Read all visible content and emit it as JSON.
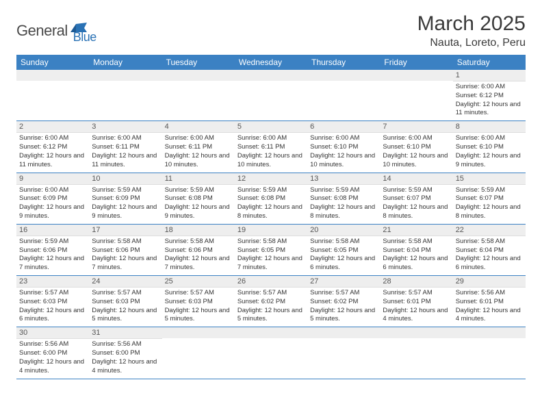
{
  "logo": {
    "part1": "General",
    "part2": "Blue"
  },
  "title": "March 2025",
  "location": "Nauta, Loreto, Peru",
  "colors": {
    "header_bg": "#3b81c3",
    "header_text": "#ffffff",
    "date_bg": "#eeeeee",
    "border": "#3b81c3",
    "logo_gray": "#4a4a4a",
    "logo_blue": "#2a72b5"
  },
  "day_names": [
    "Sunday",
    "Monday",
    "Tuesday",
    "Wednesday",
    "Thursday",
    "Friday",
    "Saturday"
  ],
  "weeks": [
    [
      null,
      null,
      null,
      null,
      null,
      null,
      {
        "n": "1",
        "sr": "6:00 AM",
        "ss": "6:12 PM",
        "dl": "12 hours and 11 minutes."
      }
    ],
    [
      {
        "n": "2",
        "sr": "6:00 AM",
        "ss": "6:12 PM",
        "dl": "12 hours and 11 minutes."
      },
      {
        "n": "3",
        "sr": "6:00 AM",
        "ss": "6:11 PM",
        "dl": "12 hours and 11 minutes."
      },
      {
        "n": "4",
        "sr": "6:00 AM",
        "ss": "6:11 PM",
        "dl": "12 hours and 10 minutes."
      },
      {
        "n": "5",
        "sr": "6:00 AM",
        "ss": "6:11 PM",
        "dl": "12 hours and 10 minutes."
      },
      {
        "n": "6",
        "sr": "6:00 AM",
        "ss": "6:10 PM",
        "dl": "12 hours and 10 minutes."
      },
      {
        "n": "7",
        "sr": "6:00 AM",
        "ss": "6:10 PM",
        "dl": "12 hours and 10 minutes."
      },
      {
        "n": "8",
        "sr": "6:00 AM",
        "ss": "6:10 PM",
        "dl": "12 hours and 9 minutes."
      }
    ],
    [
      {
        "n": "9",
        "sr": "6:00 AM",
        "ss": "6:09 PM",
        "dl": "12 hours and 9 minutes."
      },
      {
        "n": "10",
        "sr": "5:59 AM",
        "ss": "6:09 PM",
        "dl": "12 hours and 9 minutes."
      },
      {
        "n": "11",
        "sr": "5:59 AM",
        "ss": "6:08 PM",
        "dl": "12 hours and 9 minutes."
      },
      {
        "n": "12",
        "sr": "5:59 AM",
        "ss": "6:08 PM",
        "dl": "12 hours and 8 minutes."
      },
      {
        "n": "13",
        "sr": "5:59 AM",
        "ss": "6:08 PM",
        "dl": "12 hours and 8 minutes."
      },
      {
        "n": "14",
        "sr": "5:59 AM",
        "ss": "6:07 PM",
        "dl": "12 hours and 8 minutes."
      },
      {
        "n": "15",
        "sr": "5:59 AM",
        "ss": "6:07 PM",
        "dl": "12 hours and 8 minutes."
      }
    ],
    [
      {
        "n": "16",
        "sr": "5:59 AM",
        "ss": "6:06 PM",
        "dl": "12 hours and 7 minutes."
      },
      {
        "n": "17",
        "sr": "5:58 AM",
        "ss": "6:06 PM",
        "dl": "12 hours and 7 minutes."
      },
      {
        "n": "18",
        "sr": "5:58 AM",
        "ss": "6:06 PM",
        "dl": "12 hours and 7 minutes."
      },
      {
        "n": "19",
        "sr": "5:58 AM",
        "ss": "6:05 PM",
        "dl": "12 hours and 7 minutes."
      },
      {
        "n": "20",
        "sr": "5:58 AM",
        "ss": "6:05 PM",
        "dl": "12 hours and 6 minutes."
      },
      {
        "n": "21",
        "sr": "5:58 AM",
        "ss": "6:04 PM",
        "dl": "12 hours and 6 minutes."
      },
      {
        "n": "22",
        "sr": "5:58 AM",
        "ss": "6:04 PM",
        "dl": "12 hours and 6 minutes."
      }
    ],
    [
      {
        "n": "23",
        "sr": "5:57 AM",
        "ss": "6:03 PM",
        "dl": "12 hours and 6 minutes."
      },
      {
        "n": "24",
        "sr": "5:57 AM",
        "ss": "6:03 PM",
        "dl": "12 hours and 5 minutes."
      },
      {
        "n": "25",
        "sr": "5:57 AM",
        "ss": "6:03 PM",
        "dl": "12 hours and 5 minutes."
      },
      {
        "n": "26",
        "sr": "5:57 AM",
        "ss": "6:02 PM",
        "dl": "12 hours and 5 minutes."
      },
      {
        "n": "27",
        "sr": "5:57 AM",
        "ss": "6:02 PM",
        "dl": "12 hours and 5 minutes."
      },
      {
        "n": "28",
        "sr": "5:57 AM",
        "ss": "6:01 PM",
        "dl": "12 hours and 4 minutes."
      },
      {
        "n": "29",
        "sr": "5:56 AM",
        "ss": "6:01 PM",
        "dl": "12 hours and 4 minutes."
      }
    ],
    [
      {
        "n": "30",
        "sr": "5:56 AM",
        "ss": "6:00 PM",
        "dl": "12 hours and 4 minutes."
      },
      {
        "n": "31",
        "sr": "5:56 AM",
        "ss": "6:00 PM",
        "dl": "12 hours and 4 minutes."
      },
      null,
      null,
      null,
      null,
      null
    ]
  ],
  "labels": {
    "sunrise": "Sunrise:",
    "sunset": "Sunset:",
    "daylight": "Daylight:"
  }
}
